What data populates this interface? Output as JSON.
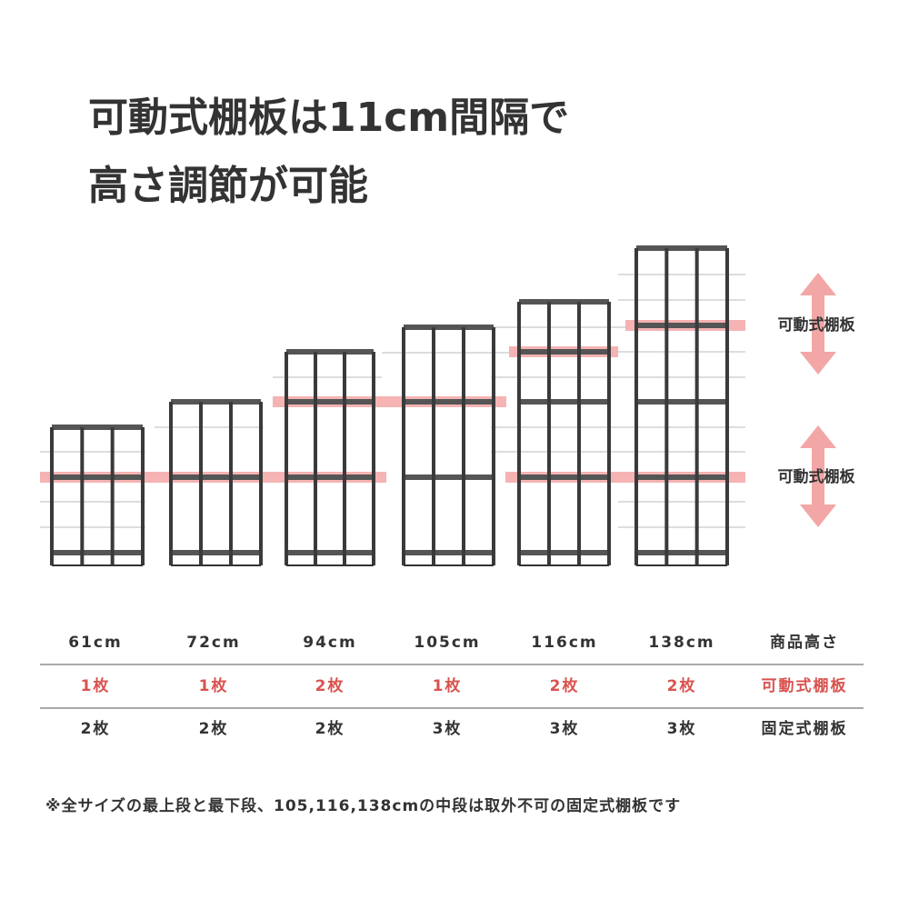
{
  "header": {
    "title": [
      "可動式棚板は11cm間隔で",
      "高さ調節が可能"
    ]
  },
  "callouts": [
    "可動式棚板",
    "可動式棚板"
  ],
  "table": {
    "rows": [
      [
        "61cm",
        "72cm",
        "94cm",
        "105cm",
        "116cm",
        "138cm",
        "商品高さ"
      ],
      [
        "1枚",
        "1枚",
        "2枚",
        "1枚",
        "2枚",
        "2枚",
        "可動式棚板"
      ],
      [
        "2枚",
        "2枚",
        "2枚",
        "3枚",
        "3枚",
        "3枚",
        "固定式棚板"
      ]
    ]
  },
  "footnote": "※全サイズの最上段と最下段、105,116,138cmの中段は取外不可の固定式棚板です"
}
